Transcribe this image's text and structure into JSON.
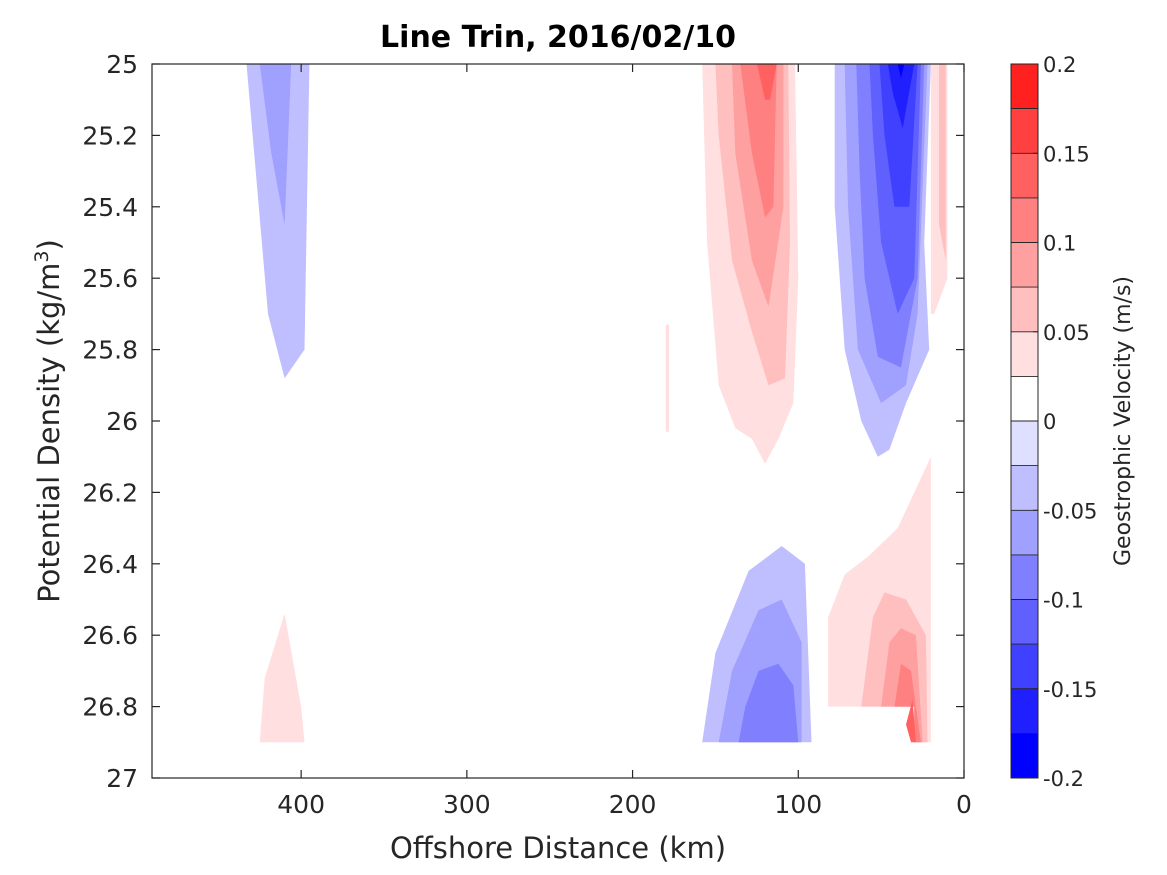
{
  "chart_data": {
    "type": "contourf",
    "title": "Line Trin, 2016/02/10",
    "xlabel": "Offshore Distance (km)",
    "ylabel_main": "Potential Density (kg/m",
    "ylabel_sup": "3",
    "ylabel_close": ")",
    "x_axis": {
      "range": [
        490,
        0
      ],
      "reversed": true,
      "ticks": [
        400,
        300,
        200,
        100,
        0
      ],
      "tick_labels": [
        "400",
        "300",
        "200",
        "100",
        "0"
      ]
    },
    "y_axis": {
      "range": [
        25,
        27
      ],
      "reversed": true,
      "ticks": [
        25,
        25.2,
        25.4,
        25.6,
        25.8,
        26,
        26.2,
        26.4,
        26.6,
        26.8,
        27
      ],
      "tick_labels": [
        "25",
        "25.2",
        "25.4",
        "25.6",
        "25.8",
        "26",
        "26.2",
        "26.4",
        "26.6",
        "26.8",
        "27"
      ]
    },
    "colorbar": {
      "label": "Geostrophic Velocity (m/s)",
      "range": [
        -0.2,
        0.2
      ],
      "levels": [
        -0.2,
        -0.175,
        -0.15,
        -0.125,
        -0.1,
        -0.075,
        -0.05,
        -0.025,
        0,
        0.025,
        0.05,
        0.075,
        0.1,
        0.125,
        0.15,
        0.175,
        0.2
      ],
      "colors": [
        "#0000ff",
        "#2020ff",
        "#4040ff",
        "#6060ff",
        "#8080ff",
        "#a0a0ff",
        "#bfbfff",
        "#dfdfff",
        "#ffffff",
        "#ffffff",
        "#ffdfdf",
        "#ffbfbf",
        "#ffa0a0",
        "#ff8080",
        "#ff6060",
        "#ff4040",
        "#ff2020",
        "#ff0000"
      ],
      "ticks": [
        0.2,
        0.15,
        0.1,
        0.05,
        0,
        -0.05,
        -0.1,
        -0.15,
        -0.2
      ],
      "tick_labels": [
        "0.2",
        "0.15",
        "0.1",
        "0.05",
        "0",
        "-0.05",
        "-0.1",
        "-0.15",
        "-0.2"
      ]
    },
    "regions": [
      {
        "name": "neg-core-400km",
        "value": -0.025,
        "points": [
          [
            433,
            25
          ],
          [
            395,
            25
          ],
          [
            398,
            25.8
          ],
          [
            410,
            25.88
          ],
          [
            420,
            25.7
          ]
        ]
      },
      {
        "name": "neg-core-400km",
        "value": -0.05,
        "points": [
          [
            425,
            25
          ],
          [
            406,
            25
          ],
          [
            410,
            25.45
          ],
          [
            418,
            25.25
          ]
        ]
      },
      {
        "name": "pos-deep-410km",
        "value": 0.025,
        "points": [
          [
            425,
            26.9
          ],
          [
            398,
            26.9
          ],
          [
            400,
            26.8
          ],
          [
            410,
            26.54
          ],
          [
            422,
            26.72
          ]
        ]
      },
      {
        "name": "pos-sliver-180km",
        "value": 0.025,
        "points": [
          [
            180,
            25.73
          ],
          [
            178,
            25.73
          ],
          [
            178,
            26.03
          ],
          [
            180,
            26.03
          ]
        ]
      },
      {
        "name": "pos-jet-120km",
        "value": 0.025,
        "points": [
          [
            158,
            25
          ],
          [
            102,
            25
          ],
          [
            100,
            25.6
          ],
          [
            103,
            25.95
          ],
          [
            112,
            26.05
          ],
          [
            120,
            26.12
          ],
          [
            128,
            26.05
          ],
          [
            138,
            26.02
          ],
          [
            148,
            25.9
          ],
          [
            155,
            25.5
          ]
        ]
      },
      {
        "name": "pos-jet-120km",
        "value": 0.05,
        "points": [
          [
            150,
            25
          ],
          [
            106,
            25
          ],
          [
            105,
            25.5
          ],
          [
            108,
            25.88
          ],
          [
            118,
            25.9
          ],
          [
            128,
            25.75
          ],
          [
            140,
            25.55
          ],
          [
            148,
            25.2
          ]
        ]
      },
      {
        "name": "pos-jet-120km",
        "value": 0.075,
        "points": [
          [
            140,
            25
          ],
          [
            109,
            25
          ],
          [
            109,
            25.4
          ],
          [
            118,
            25.68
          ],
          [
            128,
            25.55
          ],
          [
            138,
            25.25
          ]
        ]
      },
      {
        "name": "pos-jet-120km",
        "value": 0.1,
        "points": [
          [
            135,
            25
          ],
          [
            113,
            25
          ],
          [
            115,
            25.4
          ],
          [
            120,
            25.43
          ],
          [
            128,
            25.25
          ]
        ]
      },
      {
        "name": "pos-jet-120km",
        "value": 0.125,
        "points": [
          [
            125,
            25
          ],
          [
            113,
            25
          ],
          [
            117,
            25.1
          ],
          [
            120,
            25.1
          ]
        ]
      },
      {
        "name": "neg-jet-55km",
        "value": -0.025,
        "points": [
          [
            78,
            25
          ],
          [
            20,
            25
          ],
          [
            24,
            25.5
          ],
          [
            21,
            25.8
          ],
          [
            35,
            25.95
          ],
          [
            45,
            26.08
          ],
          [
            52,
            26.1
          ],
          [
            62,
            26.0
          ],
          [
            72,
            25.8
          ],
          [
            78,
            25.4
          ]
        ]
      },
      {
        "name": "neg-jet-55km",
        "value": -0.05,
        "points": [
          [
            72,
            25
          ],
          [
            22,
            25
          ],
          [
            28,
            25.7
          ],
          [
            35,
            25.9
          ],
          [
            50,
            25.95
          ],
          [
            64,
            25.8
          ],
          [
            70,
            25.4
          ]
        ]
      },
      {
        "name": "neg-jet-55km",
        "value": -0.075,
        "points": [
          [
            65,
            25
          ],
          [
            24,
            25
          ],
          [
            28,
            25.6
          ],
          [
            38,
            25.85
          ],
          [
            52,
            25.82
          ],
          [
            60,
            25.6
          ],
          [
            63,
            25.3
          ]
        ]
      },
      {
        "name": "neg-jet-55km",
        "value": -0.1,
        "points": [
          [
            57,
            25
          ],
          [
            26,
            25
          ],
          [
            30,
            25.6
          ],
          [
            40,
            25.7
          ],
          [
            50,
            25.5
          ],
          [
            55,
            25.2
          ]
        ]
      },
      {
        "name": "neg-jet-55km",
        "value": -0.125,
        "points": [
          [
            51,
            25
          ],
          [
            28,
            25
          ],
          [
            33,
            25.4
          ],
          [
            42,
            25.4
          ],
          [
            48,
            25.2
          ]
        ]
      },
      {
        "name": "neg-jet-55km",
        "value": -0.15,
        "points": [
          [
            46,
            25
          ],
          [
            30,
            25
          ],
          [
            37,
            25.18
          ],
          [
            43,
            25.08
          ]
        ]
      },
      {
        "name": "neg-jet-55km",
        "value": -0.175,
        "points": [
          [
            40,
            25
          ],
          [
            36,
            25
          ],
          [
            38,
            25.04
          ]
        ]
      },
      {
        "name": "pos-coastal-15km",
        "value": 0.025,
        "points": [
          [
            20,
            25
          ],
          [
            10,
            25
          ],
          [
            10,
            25.6
          ],
          [
            18,
            25.7
          ],
          [
            20,
            25.7
          ]
        ]
      },
      {
        "name": "pos-coastal-15km",
        "value": 0.05,
        "points": [
          [
            15,
            25
          ],
          [
            11,
            25
          ],
          [
            11,
            25.55
          ],
          [
            15,
            25.45
          ]
        ]
      },
      {
        "name": "neg-deep-120km",
        "value": -0.025,
        "points": [
          [
            158,
            26.9
          ],
          [
            92,
            26.9
          ],
          [
            96,
            26.4
          ],
          [
            110,
            26.35
          ],
          [
            130,
            26.42
          ],
          [
            150,
            26.65
          ]
        ]
      },
      {
        "name": "neg-deep-120km",
        "value": -0.05,
        "points": [
          [
            148,
            26.9
          ],
          [
            98,
            26.9
          ],
          [
            98,
            26.62
          ],
          [
            110,
            26.5
          ],
          [
            124,
            26.53
          ],
          [
            140,
            26.7
          ]
        ]
      },
      {
        "name": "neg-deep-120km",
        "value": -0.075,
        "points": [
          [
            136,
            26.9
          ],
          [
            100,
            26.9
          ],
          [
            103,
            26.74
          ],
          [
            112,
            26.68
          ],
          [
            124,
            26.7
          ],
          [
            132,
            26.8
          ]
        ]
      },
      {
        "name": "pos-deep-45km",
        "value": 0.025,
        "points": [
          [
            82,
            26.8
          ],
          [
            30,
            26.8
          ],
          [
            30,
            26.9
          ],
          [
            20,
            26.9
          ],
          [
            20,
            26.1
          ],
          [
            30,
            26.2
          ],
          [
            40,
            26.3
          ],
          [
            58,
            26.38
          ],
          [
            72,
            26.43
          ],
          [
            82,
            26.55
          ]
        ]
      },
      {
        "name": "pos-deep-45km",
        "value": 0.05,
        "points": [
          [
            62,
            26.8
          ],
          [
            30,
            26.8
          ],
          [
            30,
            26.9
          ],
          [
            22,
            26.9
          ],
          [
            23,
            26.6
          ],
          [
            35,
            26.5
          ],
          [
            48,
            26.48
          ],
          [
            55,
            26.55
          ]
        ]
      },
      {
        "name": "pos-deep-45km",
        "value": 0.075,
        "points": [
          [
            50,
            26.8
          ],
          [
            30,
            26.8
          ],
          [
            30,
            26.9
          ],
          [
            25,
            26.9
          ],
          [
            29,
            26.6
          ],
          [
            38,
            26.58
          ],
          [
            45,
            26.62
          ]
        ]
      },
      {
        "name": "pos-deep-45km",
        "value": 0.1,
        "points": [
          [
            42,
            26.8
          ],
          [
            30,
            26.8
          ],
          [
            30,
            26.9
          ],
          [
            26,
            26.9
          ],
          [
            32,
            26.7
          ],
          [
            38,
            26.68
          ]
        ]
      },
      {
        "name": "pos-deep-45km",
        "value": 0.125,
        "points": [
          [
            35,
            26.85
          ],
          [
            32,
            26.9
          ],
          [
            29,
            26.9
          ],
          [
            31,
            26.78
          ]
        ]
      }
    ]
  }
}
